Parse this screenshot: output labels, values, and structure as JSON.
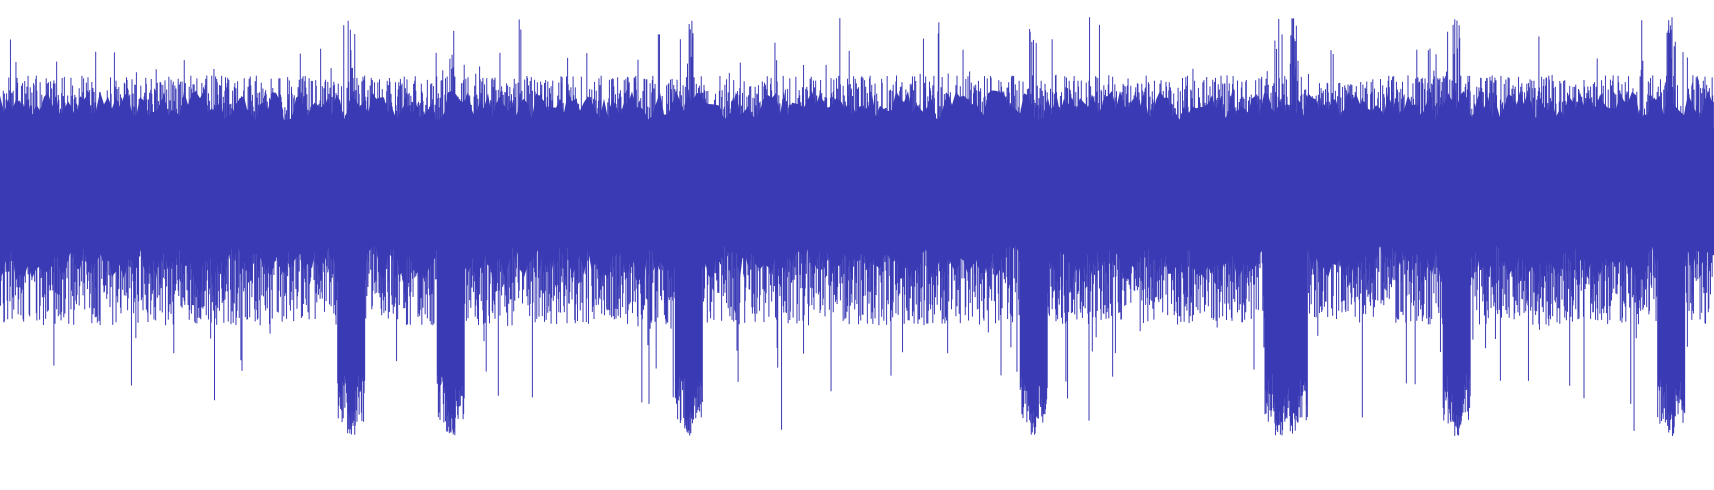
{
  "waveform": {
    "color": "#3a3ab4",
    "background": "#ffffff",
    "amplitude_range": [
      -1,
      1
    ],
    "center_amplitude": 0.0,
    "typical_peak_positive": 0.62,
    "typical_peak_negative": -0.55,
    "max_peak_positive": 0.99,
    "max_peak_negative": -1.0,
    "transient_dips": [
      0.205,
      0.263,
      0.402,
      0.603,
      0.746,
      0.755,
      0.85,
      0.975
    ],
    "quiet_dips": [
      0.205,
      0.263,
      0.402,
      0.603,
      0.746,
      0.755
    ]
  }
}
